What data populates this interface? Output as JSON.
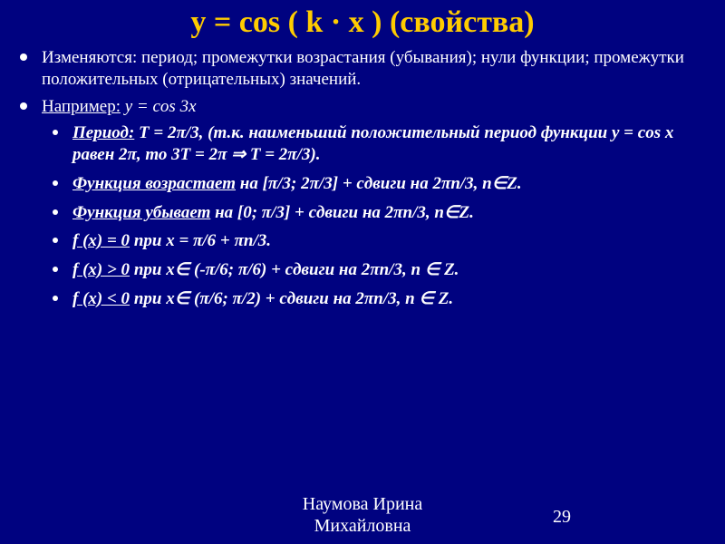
{
  "colors": {
    "background": "#000280",
    "title": "#ffcc00",
    "text": "#ffffff",
    "bullet": "#ffffff"
  },
  "typography": {
    "family": "Times New Roman, serif",
    "title_fontsize": 34,
    "body_fontsize": 19,
    "footer_fontsize": 20,
    "title_weight": "bold",
    "sub_weight": "bold",
    "sub_style": "italic"
  },
  "title": "y = cos ( k · x ) (свойства)",
  "b1": {
    "changes": "Изменяются: период; промежутки возрастания (убывания); нули функции; промежутки положительных (отрицательных) значений.",
    "example_prefix": "Например:",
    "example_formula": " y =  cos 3x"
  },
  "sub": {
    "period_label": "Период:",
    "period_text": " T = 2π/3, (т.к. наименьший положительный период функции  y = cos x равен 2π, то  3T = 2π ⇒                         T = 2π/3).",
    "increase_label": "Функция возрастает",
    "increase_text": " на [π/3; 2π/3] + сдвиги на 2πn/3, n∈Z.",
    "decrease_label": "Функция убывает",
    "decrease_text": " на  [0; π/3] + сдвиги на 2πn/3, n∈Z.",
    "zero_label": "f (x) = 0",
    "zero_text": " при x = π/6 + πn/3.",
    "pos_label": "f (x) > 0",
    "pos_text": " при x∈ (-π/6; π/6) + сдвиги на 2πn/3, n ∈ Z.",
    "neg_label": "f (x) < 0",
    "neg_text": " при x∈ (π/6; π/2) + сдвиги на 2πn/3, n ∈ Z."
  },
  "footer": {
    "author_line1": "Наумова Ирина",
    "author_line2": "Михайловна",
    "page": "29"
  }
}
